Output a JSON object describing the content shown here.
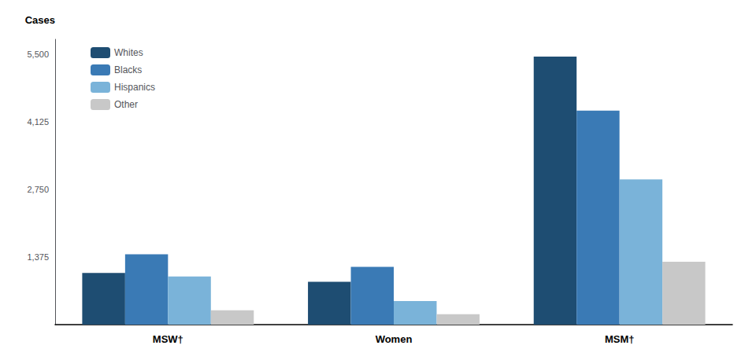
{
  "chart_data": {
    "type": "bar",
    "ylabel": "Cases",
    "categories": [
      "MSW†",
      "Women",
      "MSM†"
    ],
    "series": [
      {
        "name": "Whites",
        "color": "#1e4d72",
        "values": [
          1050,
          870,
          5450
        ]
      },
      {
        "name": "Blacks",
        "color": "#3a7ab5",
        "values": [
          1430,
          1175,
          4350
        ]
      },
      {
        "name": "Hispanics",
        "color": "#7ab3d9",
        "values": [
          980,
          480,
          2950
        ]
      },
      {
        "name": "Other",
        "color": "#c8c8c8",
        "values": [
          290,
          210,
          1280
        ]
      }
    ],
    "ylim": [
      0,
      5800
    ],
    "yticks": [
      1375,
      2750,
      4125,
      5500
    ],
    "grid": false,
    "legend": "upper left"
  }
}
